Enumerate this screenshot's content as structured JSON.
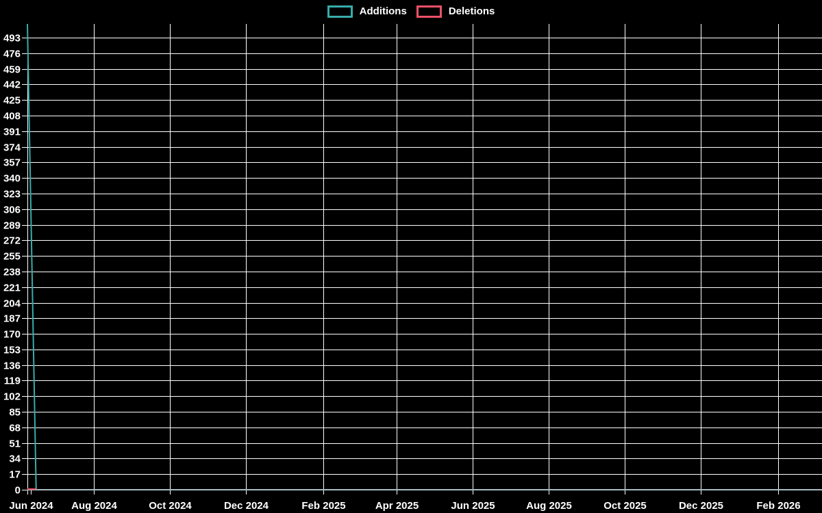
{
  "chart_data": {
    "type": "line",
    "title": "",
    "legend_position": "top-center",
    "grid": true,
    "colors": {
      "background": "#000000",
      "grid": "#ffffff",
      "text": "#ffffff",
      "axis_line": "#a8bcc2",
      "additions": "#38acac",
      "deletions": "#ed5168"
    },
    "series": [
      {
        "name": "Additions",
        "color": "#38acac",
        "points": [
          [
            "2024-06-09",
            508
          ],
          [
            "2024-06-16",
            0
          ],
          [
            "2026-03-08",
            0
          ]
        ]
      },
      {
        "name": "Deletions",
        "color": "#ed5168",
        "points": [
          [
            "2024-06-09",
            0
          ],
          [
            "2024-06-16",
            0
          ]
        ]
      }
    ],
    "x_axis": {
      "start": "2024-06-09",
      "end": "2026-03-08",
      "ticks": [
        {
          "date": "2024-06-12",
          "label": "Jun 2024",
          "grid": false
        },
        {
          "date": "2024-08-01",
          "label": "Aug 2024",
          "grid": true
        },
        {
          "date": "2024-10-01",
          "label": "Oct 2024",
          "grid": true
        },
        {
          "date": "2024-12-01",
          "label": "Dec 2024",
          "grid": true
        },
        {
          "date": "2025-02-01",
          "label": "Feb 2025",
          "grid": true
        },
        {
          "date": "2025-04-01",
          "label": "Apr 2025",
          "grid": true
        },
        {
          "date": "2025-06-01",
          "label": "Jun 2025",
          "grid": true
        },
        {
          "date": "2025-08-01",
          "label": "Aug 2025",
          "grid": true
        },
        {
          "date": "2025-10-01",
          "label": "Oct 2025",
          "grid": true
        },
        {
          "date": "2025-12-01",
          "label": "Dec 2025",
          "grid": true
        },
        {
          "date": "2026-02-01",
          "label": "Feb 2026",
          "grid": true
        }
      ]
    },
    "y_axis": {
      "min": 0,
      "max": 508,
      "tick_step": 17,
      "ticks": [
        0,
        17,
        34,
        51,
        68,
        85,
        102,
        119,
        136,
        153,
        170,
        187,
        204,
        221,
        238,
        255,
        272,
        289,
        306,
        323,
        340,
        357,
        374,
        391,
        408,
        425,
        442,
        459,
        476,
        493
      ]
    }
  }
}
